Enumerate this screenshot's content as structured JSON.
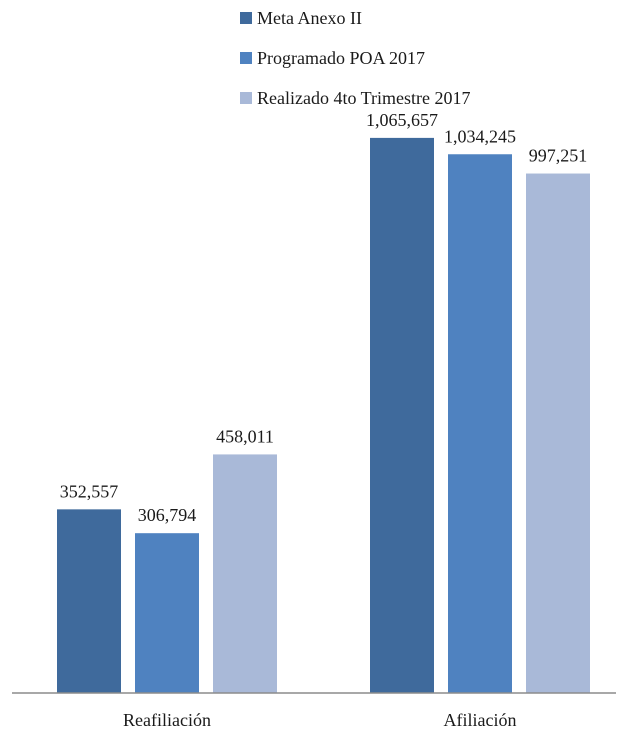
{
  "chart_data": {
    "type": "bar",
    "title": "",
    "xlabel": "",
    "ylabel": "",
    "categories": [
      "Reafiliación",
      "Afiliación"
    ],
    "series": [
      {
        "name": "Meta Anexo II",
        "color": "#3f6a9c",
        "values": [
          352557,
          1065657
        ],
        "labels": [
          "352,557",
          "1,065,657"
        ]
      },
      {
        "name": "Programado POA 2017",
        "color": "#4f82c0",
        "values": [
          306794,
          1034245
        ],
        "labels": [
          "306,794",
          "1,034,245"
        ]
      },
      {
        "name": "Realizado 4to Trimestre 2017",
        "color": "#a9b9d8",
        "values": [
          458011,
          997251
        ],
        "labels": [
          "458,011",
          "997,251"
        ]
      }
    ],
    "ylim": [
      0,
      1100000
    ],
    "grid": false,
    "legend_position": "top-center"
  }
}
